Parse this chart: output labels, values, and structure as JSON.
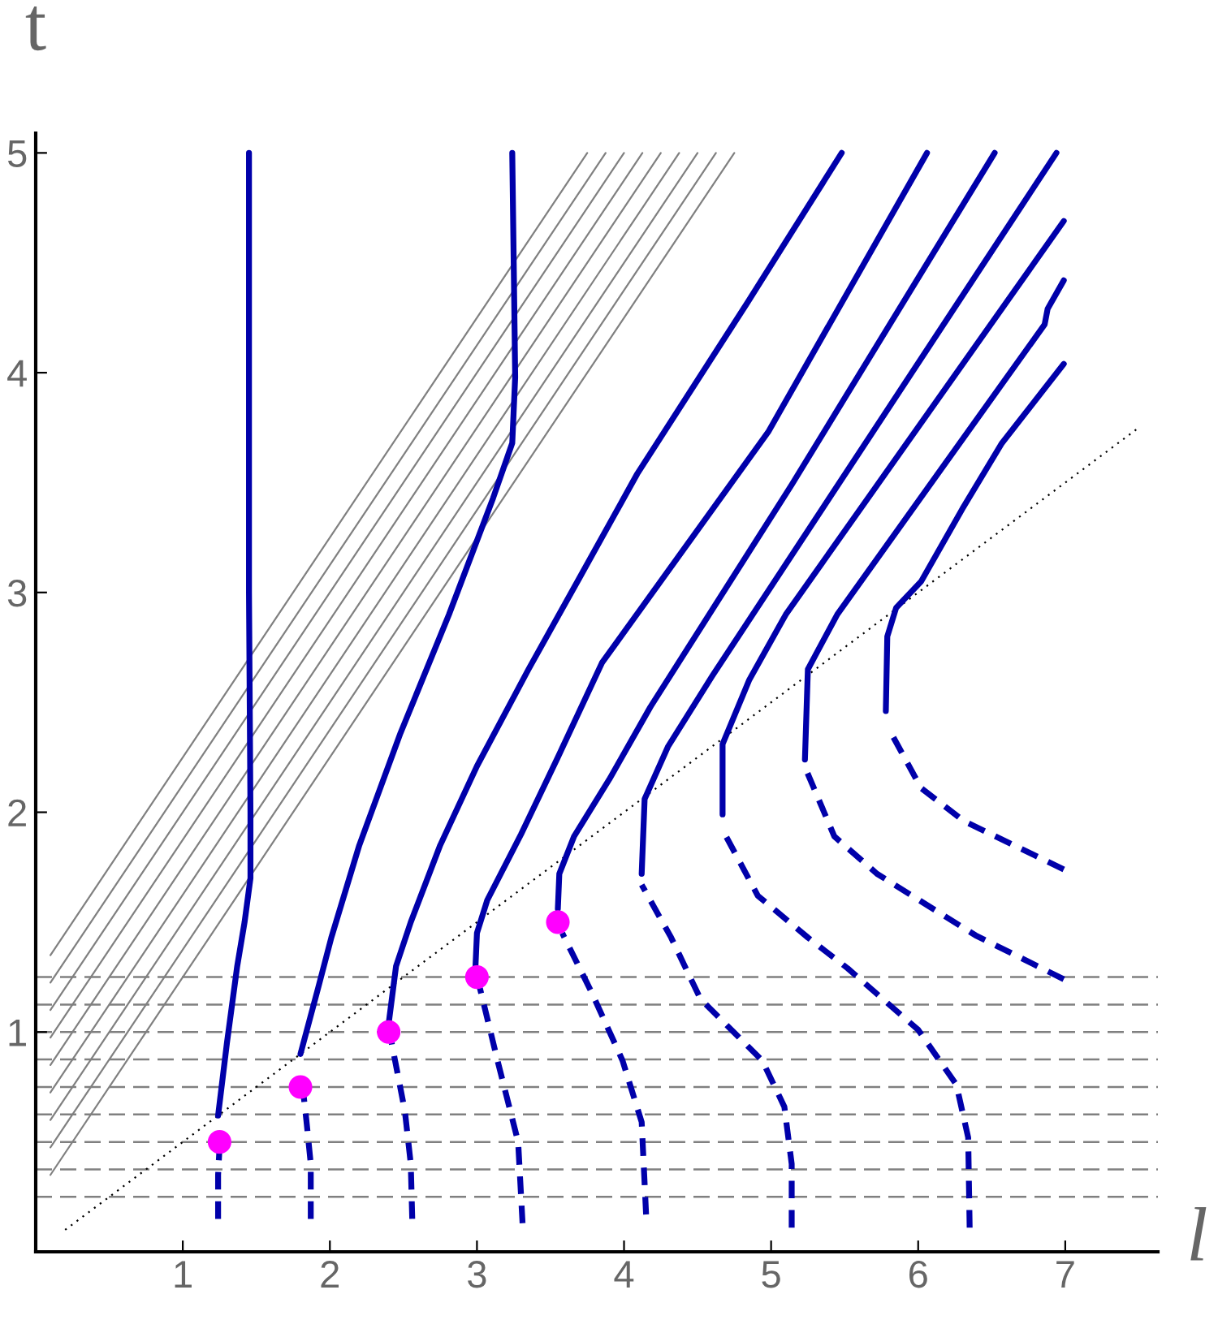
{
  "chart_data": {
    "type": "line",
    "xlabel": "l",
    "ylabel": "t",
    "xlim": [
      0,
      7.63
    ],
    "ylim": [
      0,
      5.09
    ],
    "xticks": [
      1,
      2,
      3,
      4,
      5,
      6,
      7
    ],
    "yticks": [
      1,
      2,
      3,
      4,
      5
    ],
    "grid": false,
    "legend": false,
    "ref_lines": [
      {
        "axis": "y",
        "value": 0.25,
        "color": "#808080",
        "line_style": "dashed"
      },
      {
        "axis": "y",
        "value": 0.375,
        "color": "#808080",
        "line_style": "dashed"
      },
      {
        "axis": "y",
        "value": 0.5,
        "color": "#808080",
        "line_style": "dashed"
      },
      {
        "axis": "y",
        "value": 0.625,
        "color": "#808080",
        "line_style": "dashed"
      },
      {
        "axis": "y",
        "value": 0.75,
        "color": "#808080",
        "line_style": "dashed"
      },
      {
        "axis": "y",
        "value": 0.875,
        "color": "#808080",
        "line_style": "dashed"
      },
      {
        "axis": "y",
        "value": 1.0,
        "color": "#808080",
        "line_style": "dashed"
      },
      {
        "axis": "y",
        "value": 1.125,
        "color": "#808080",
        "line_style": "dashed"
      },
      {
        "axis": "y",
        "value": 1.25,
        "color": "#808080",
        "line_style": "dashed"
      }
    ],
    "series": [
      {
        "color": "#808080",
        "line_style": "solid",
        "x": [
          0.1,
          4.75
        ],
        "values": [
          0.35,
          5.0
        ]
      },
      {
        "color": "#808080",
        "line_style": "solid",
        "x": [
          0.1,
          4.625
        ],
        "values": [
          0.475,
          5.0
        ]
      },
      {
        "color": "#808080",
        "line_style": "solid",
        "x": [
          0.1,
          4.5
        ],
        "values": [
          0.6,
          5.0
        ]
      },
      {
        "color": "#808080",
        "line_style": "solid",
        "x": [
          0.1,
          4.375
        ],
        "values": [
          0.725,
          5.0
        ]
      },
      {
        "color": "#808080",
        "line_style": "solid",
        "x": [
          0.1,
          4.25
        ],
        "values": [
          0.85,
          5.0
        ]
      },
      {
        "color": "#808080",
        "line_style": "solid",
        "x": [
          0.1,
          4.125
        ],
        "values": [
          0.975,
          5.0
        ]
      },
      {
        "color": "#808080",
        "line_style": "solid",
        "x": [
          0.1,
          4.0
        ],
        "values": [
          1.1,
          5.0
        ]
      },
      {
        "color": "#808080",
        "line_style": "solid",
        "x": [
          0.1,
          3.875
        ],
        "values": [
          1.225,
          5.0
        ]
      },
      {
        "color": "#808080",
        "line_style": "solid",
        "x": [
          0.1,
          3.75
        ],
        "values": [
          1.35,
          5.0
        ]
      },
      {
        "color": "#000000",
        "line_style": "dotted",
        "x": [
          0.2,
          7.5
        ],
        "values": [
          0.1,
          3.75
        ]
      },
      {
        "color": "#0000aa",
        "line_style": "solid",
        "x": [
          1.24,
          1.3,
          1.37,
          1.42,
          1.46,
          1.46,
          1.45,
          1.45,
          1.45
        ],
        "values": [
          0.62,
          0.95,
          1.3,
          1.5,
          1.7,
          2.0,
          3.0,
          4.0,
          5.0
        ]
      },
      {
        "color": "#0000aa",
        "line_style": "solid",
        "x": [
          1.8,
          1.92,
          2.01,
          2.2,
          2.48,
          2.81,
          3.11,
          3.24,
          3.26,
          3.25,
          3.24
        ],
        "values": [
          0.9,
          1.2,
          1.43,
          1.85,
          2.36,
          2.9,
          3.43,
          3.68,
          3.98,
          4.5,
          5.0
        ]
      },
      {
        "color": "#0000aa",
        "line_style": "solid",
        "x": [
          2.4,
          2.45,
          2.55,
          2.75,
          3.0,
          3.35,
          3.7,
          4.09,
          4.84,
          5.48
        ],
        "values": [
          1.04,
          1.3,
          1.5,
          1.85,
          2.21,
          2.65,
          3.07,
          3.54,
          4.32,
          5.0
        ]
      },
      {
        "color": "#0000aa",
        "line_style": "solid",
        "x": [
          2.99,
          3.0,
          3.07,
          3.3,
          3.55,
          3.85,
          4.98,
          6.06
        ],
        "values": [
          1.3,
          1.45,
          1.6,
          1.9,
          2.25,
          2.68,
          3.73,
          5.0
        ]
      },
      {
        "color": "#0000aa",
        "line_style": "solid",
        "x": [
          3.55,
          3.56,
          3.66,
          3.9,
          4.18,
          5.14,
          6.52
        ],
        "values": [
          1.56,
          1.72,
          1.89,
          2.15,
          2.48,
          3.49,
          5.0
        ]
      },
      {
        "color": "#0000aa",
        "line_style": "solid",
        "x": [
          4.12,
          4.14,
          4.3,
          4.6,
          6.94
        ],
        "values": [
          1.72,
          2.06,
          2.3,
          2.62,
          5.0
        ]
      },
      {
        "color": "#0000aa",
        "line_style": "solid",
        "x": [
          4.67,
          4.67,
          4.85,
          5.1,
          6.99
        ],
        "values": [
          1.99,
          2.31,
          2.6,
          2.9,
          4.69
        ]
      },
      {
        "color": "#0000aa",
        "line_style": "solid",
        "x": [
          5.23,
          5.25,
          5.45,
          6.86,
          6.88,
          6.99
        ],
        "values": [
          2.24,
          2.65,
          2.9,
          4.22,
          4.29,
          4.42
        ]
      },
      {
        "color": "#0000aa",
        "line_style": "solid",
        "x": [
          5.78,
          5.79,
          5.85,
          6.02,
          6.3,
          6.57,
          6.99
        ],
        "values": [
          2.46,
          2.8,
          2.93,
          3.05,
          3.38,
          3.68,
          4.04
        ]
      },
      {
        "color": "#0000aa",
        "line_style": "dashed",
        "x": [
          1.24,
          1.24,
          1.25
        ],
        "values": [
          0.15,
          0.35,
          0.48
        ]
      },
      {
        "color": "#0000aa",
        "line_style": "dashed",
        "x": [
          1.87,
          1.87,
          1.84,
          1.82
        ],
        "values": [
          0.15,
          0.4,
          0.6,
          0.72
        ]
      },
      {
        "color": "#0000aa",
        "line_style": "dashed",
        "x": [
          2.56,
          2.55,
          2.51,
          2.42
        ],
        "values": [
          0.15,
          0.4,
          0.64,
          0.95
        ]
      },
      {
        "color": "#0000aa",
        "line_style": "dashed",
        "x": [
          3.31,
          3.28,
          3.14,
          3.02
        ],
        "values": [
          0.13,
          0.5,
          0.87,
          1.2
        ]
      },
      {
        "color": "#0000aa",
        "line_style": "dashed",
        "x": [
          4.15,
          4.12,
          3.99,
          3.78,
          3.58
        ],
        "values": [
          0.17,
          0.59,
          0.87,
          1.18,
          1.45
        ]
      },
      {
        "color": "#0000aa",
        "line_style": "dashed",
        "x": [
          5.14,
          5.14,
          5.09,
          4.94,
          4.52,
          4.32,
          4.12
        ],
        "values": [
          0.11,
          0.4,
          0.66,
          0.87,
          1.15,
          1.43,
          1.67
        ]
      },
      {
        "color": "#0000aa",
        "line_style": "dashed",
        "x": [
          6.35,
          6.34,
          6.26,
          6.0,
          5.52,
          5.25,
          4.91,
          4.67
        ],
        "values": [
          0.11,
          0.52,
          0.76,
          1.01,
          1.29,
          1.43,
          1.62,
          1.92
        ]
      },
      {
        "color": "#0000aa",
        "line_style": "dashed",
        "x": [
          6.99,
          6.39,
          5.72,
          5.43,
          5.24
        ],
        "values": [
          1.24,
          1.44,
          1.72,
          1.89,
          2.19
        ]
      },
      {
        "color": "#0000aa",
        "line_style": "dashed",
        "x": [
          6.99,
          6.31,
          6.02,
          5.8
        ],
        "values": [
          1.74,
          1.96,
          2.11,
          2.38
        ]
      },
      {
        "type": "scatter",
        "marker": "circle",
        "color": "#ff00ff",
        "x": [
          1.25,
          1.8,
          2.4,
          3.0,
          3.55
        ],
        "values": [
          0.5,
          0.75,
          1.0,
          1.25,
          1.5
        ]
      }
    ]
  }
}
